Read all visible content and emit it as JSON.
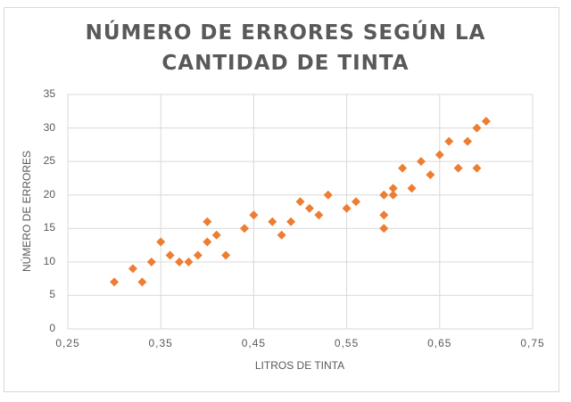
{
  "chart_data": {
    "type": "scatter",
    "title": "NÚMERO DE ERRORES SEGÚN LA CANTIDAD DE TINTA",
    "title_lines": [
      "NÚMERO DE ERRORES SEGÚN LA",
      "CANTIDAD DE TINTA"
    ],
    "xlabel": "LITROS DE TINTA",
    "ylabel": "NÚMERO DE ERRORES",
    "xlim": [
      0.25,
      0.75
    ],
    "ylim": [
      0,
      35
    ],
    "x_ticks": [
      "0,25",
      "0,35",
      "0,45",
      "0,55",
      "0,65",
      "0,75"
    ],
    "x_tick_values": [
      0.25,
      0.35,
      0.45,
      0.55,
      0.65,
      0.75
    ],
    "y_ticks": [
      "0",
      "5",
      "10",
      "15",
      "20",
      "25",
      "30",
      "35"
    ],
    "y_tick_values": [
      0,
      5,
      10,
      15,
      20,
      25,
      30,
      35
    ],
    "grid": true,
    "legend": false,
    "marker": "diamond",
    "color": "#ED7D31",
    "series": [
      {
        "name": "Número de errores",
        "points": [
          [
            0.3,
            7
          ],
          [
            0.32,
            9
          ],
          [
            0.33,
            7
          ],
          [
            0.34,
            10
          ],
          [
            0.35,
            13
          ],
          [
            0.36,
            11
          ],
          [
            0.37,
            10
          ],
          [
            0.38,
            10
          ],
          [
            0.39,
            11
          ],
          [
            0.4,
            16
          ],
          [
            0.4,
            13
          ],
          [
            0.41,
            14
          ],
          [
            0.42,
            11
          ],
          [
            0.44,
            15
          ],
          [
            0.45,
            17
          ],
          [
            0.47,
            16
          ],
          [
            0.48,
            14
          ],
          [
            0.49,
            16
          ],
          [
            0.5,
            19
          ],
          [
            0.51,
            18
          ],
          [
            0.52,
            17
          ],
          [
            0.53,
            20
          ],
          [
            0.55,
            18
          ],
          [
            0.56,
            19
          ],
          [
            0.59,
            20
          ],
          [
            0.59,
            17
          ],
          [
            0.59,
            15
          ],
          [
            0.6,
            21
          ],
          [
            0.6,
            20
          ],
          [
            0.61,
            24
          ],
          [
            0.62,
            21
          ],
          [
            0.63,
            25
          ],
          [
            0.64,
            23
          ],
          [
            0.65,
            26
          ],
          [
            0.66,
            28
          ],
          [
            0.67,
            24
          ],
          [
            0.68,
            28
          ],
          [
            0.69,
            30
          ],
          [
            0.69,
            24
          ],
          [
            0.7,
            31
          ]
        ]
      }
    ]
  }
}
